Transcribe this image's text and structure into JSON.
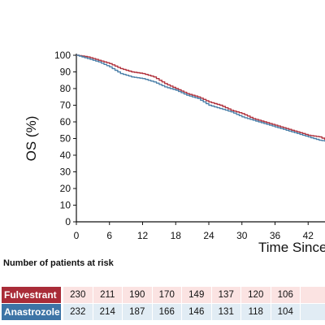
{
  "chart_data": {
    "type": "line",
    "title": "",
    "ylabel": "OS (%)",
    "xlabel": "Time Since",
    "ylim": [
      0,
      100
    ],
    "yticks": [
      0,
      10,
      20,
      30,
      40,
      50,
      60,
      70,
      80,
      90,
      100
    ],
    "xticks": [
      0,
      6,
      12,
      18,
      24,
      30,
      36,
      42
    ],
    "series": [
      {
        "name": "Fulvestrant",
        "color": "#b0303b",
        "x": [
          0,
          2,
          4,
          6,
          8,
          10,
          12,
          14,
          16,
          18,
          20,
          22,
          24,
          26,
          28,
          30,
          32,
          34,
          36,
          38,
          40,
          42,
          44,
          46
        ],
        "y": [
          100,
          99,
          97,
          95,
          92,
          90,
          89,
          87,
          83,
          80,
          77,
          75,
          72,
          70,
          67,
          65,
          62,
          60,
          58,
          56,
          54,
          52,
          51,
          48
        ]
      },
      {
        "name": "Anastrozole",
        "color": "#4a7fa8",
        "x": [
          0,
          2,
          4,
          6,
          8,
          10,
          12,
          14,
          16,
          18,
          20,
          22,
          24,
          26,
          28,
          30,
          32,
          34,
          36,
          38,
          40,
          42,
          44,
          46
        ],
        "y": [
          100,
          98,
          96,
          93,
          89,
          87,
          86,
          84,
          81,
          79,
          76,
          74,
          70,
          68,
          66,
          63,
          61,
          59,
          57,
          55,
          53,
          51,
          49,
          48
        ]
      }
    ]
  },
  "risk_table": {
    "title": "Number of patients at risk",
    "rows": [
      {
        "label": "Fulvestrant",
        "label_color": "#a92c38",
        "cell_color": "#fbe3e2",
        "values": [
          "230",
          "211",
          "190",
          "170",
          "149",
          "137",
          "120",
          "106",
          ""
        ]
      },
      {
        "label": "Anastrozole",
        "label_color": "#3d74a6",
        "cell_color": "#e1ecf4",
        "values": [
          "232",
          "214",
          "187",
          "166",
          "146",
          "131",
          "118",
          "104",
          ""
        ]
      }
    ]
  }
}
